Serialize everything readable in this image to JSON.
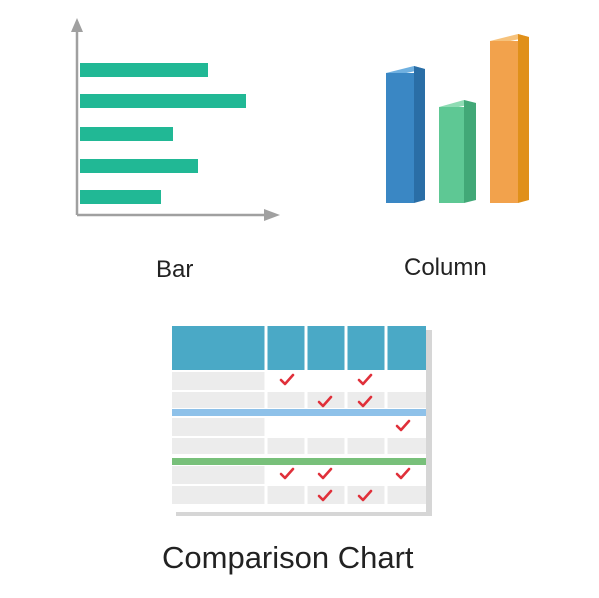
{
  "items": [
    {
      "label": "Bar"
    },
    {
      "label": "Column"
    },
    {
      "label": "Comparison Chart"
    }
  ],
  "colors": {
    "bar_teal": "#21b895",
    "axis_gray": "#a0a0a0",
    "col_blue": "#3a87c4",
    "col_green": "#5ec894",
    "col_orange": "#f2a24c",
    "table_header": "#4aa9c6",
    "table_row": "#ececec",
    "table_blue_line": "#8ec1e9",
    "table_green_line": "#78c07a",
    "check_red": "#e0303a"
  },
  "icons": [
    "bar-chart-icon",
    "column-chart-icon",
    "comparison-table-icon",
    "check-mark-icon"
  ]
}
